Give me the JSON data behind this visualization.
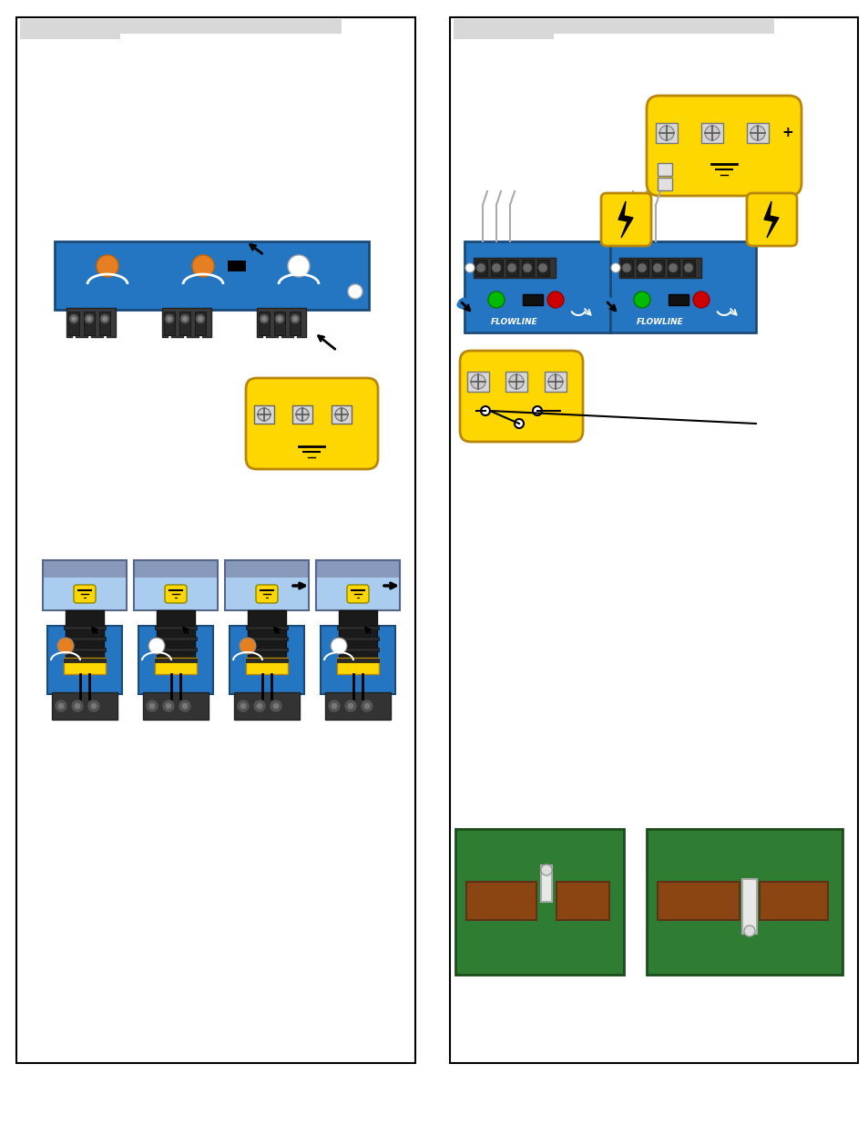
{
  "bg_color": "#ffffff",
  "header_gray": "#d8d8d8",
  "blue_color": "#2475c2",
  "yellow_color": "#FFD700",
  "green_color": "#2e7d32",
  "orange_color": "#e67e22",
  "dark_blue": "#1a4a7a",
  "dark_yellow": "#B8860B",
  "terminal_dark": "#333333",
  "terminal_mid": "#555555",
  "pipe_color": "#8899bb",
  "pipe_border": "#556688",
  "liquid_color": "#aaccee",
  "sensor_yellow": "#FFD700",
  "sensor_black": "#111111",
  "green_led": "#00bb00",
  "red_led": "#cc0000",
  "brown_color": "#8B4513",
  "light_gray": "#e8e8e8"
}
